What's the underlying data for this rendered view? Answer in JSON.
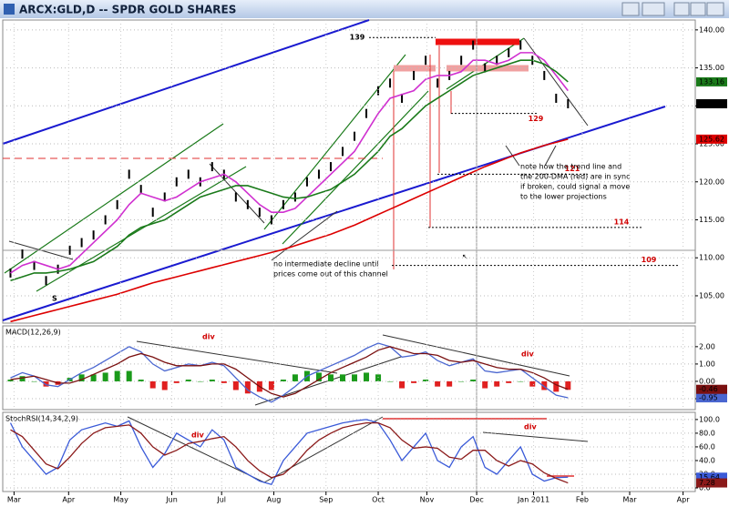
{
  "chart_data": [
    {
      "type": "price",
      "title": "ARCX:GLD,D -- SPDR GOLD SHARES",
      "xlim": [
        0,
        58
      ],
      "ylim": [
        101.4,
        141.3
      ],
      "grid": true,
      "yticks": [
        {
          "value": 105,
          "label": "105.00"
        },
        {
          "value": 110,
          "label": "110.00"
        },
        {
          "value": 115,
          "label": "115.00"
        },
        {
          "value": 120,
          "label": "120.00"
        },
        {
          "value": 125,
          "label": "125.00"
        },
        {
          "value": 130,
          "label": "130.00"
        },
        {
          "value": 135,
          "label": "135.00"
        },
        {
          "value": 140,
          "label": "140.00"
        }
      ],
      "x": [
        0.5,
        1.5,
        2.5,
        3.5,
        4.5,
        5.5,
        6.5,
        7.5,
        8.5,
        9.5,
        10.5,
        11.5,
        12.5,
        13.5,
        14.5,
        15.5,
        16.5,
        17.5,
        18.5,
        19.5,
        20.5,
        21.5,
        22.5,
        23.5,
        24.5,
        25.5,
        26.5,
        27.5,
        28.5,
        29.5,
        30.5,
        31.5,
        32.5,
        33.5,
        34.5,
        35.5,
        36.5,
        37.5,
        38.5,
        39.5,
        40.5,
        41.5,
        42.5,
        43.5,
        44.5,
        45.5,
        46.5,
        47.5
      ],
      "series": [
        {
          "style": "ticks",
          "color": "#000000",
          "badge": true,
          "values": [
            108,
            110.5,
            109,
            107,
            108.5,
            111,
            112,
            113,
            115,
            117,
            121,
            119,
            116,
            118,
            120,
            121,
            120,
            122,
            121,
            118,
            117,
            116,
            115,
            117,
            118,
            120,
            121,
            122,
            124,
            126,
            129,
            132,
            133,
            131,
            134,
            136,
            133,
            134,
            136,
            138,
            135,
            136,
            137,
            138,
            136,
            134,
            131,
            130.28
          ]
        },
        {
          "style": "line",
          "color": "#d030d0",
          "badge": false,
          "values": [
            108,
            109,
            109.5,
            109,
            108.5,
            109,
            110.5,
            112,
            113.5,
            115,
            117,
            118.5,
            118,
            117.5,
            118,
            119,
            120,
            120.5,
            121,
            120,
            118.5,
            117,
            116,
            116,
            116.5,
            118,
            119.5,
            121,
            122.5,
            124,
            126.5,
            129,
            131,
            131.5,
            132,
            133.5,
            134,
            134,
            134.5,
            136,
            136,
            135.5,
            136,
            137,
            137,
            136,
            134,
            132
          ]
        },
        {
          "style": "line",
          "color": "#1a7a1a",
          "badge": true,
          "values": [
            107,
            107.5,
            108,
            108,
            108.2,
            108.5,
            109,
            109.5,
            110.5,
            111.5,
            113,
            114,
            114.5,
            115,
            116,
            117,
            118,
            118.5,
            119,
            119.5,
            119.5,
            119,
            118.5,
            118,
            117.8,
            118,
            118.5,
            119,
            120,
            121,
            122.5,
            124,
            126,
            127,
            128.5,
            130,
            131,
            132,
            133,
            134,
            134.5,
            135,
            135.5,
            136,
            136,
            135.5,
            134.5,
            133.16
          ]
        },
        {
          "style": "line",
          "color": "#dd0000",
          "badge": true,
          "values": [
            101.6,
            102,
            102.4,
            102.8,
            103.2,
            103.6,
            104,
            104.4,
            104.8,
            105.2,
            105.7,
            106.2,
            106.7,
            107.1,
            107.5,
            107.9,
            108.3,
            108.7,
            109.1,
            109.5,
            109.9,
            110.3,
            110.7,
            111.1,
            111.6,
            112.1,
            112.6,
            113.1,
            113.7,
            114.3,
            115,
            115.7,
            116.4,
            117.1,
            117.8,
            118.5,
            119.2,
            119.9,
            120.6,
            121.3,
            122,
            122.6,
            123.2,
            123.8,
            124.3,
            124.8,
            125.2,
            125.62
          ]
        }
      ],
      "projections": [
        139,
        129,
        121,
        114,
        109
      ],
      "annotations": [
        [
          "S"
        ],
        [
          "note how the trend line and",
          "the 200-DMA (red) are in sync",
          "if broken, could signal a move",
          "to the lower projections"
        ],
        [
          "no intermediate decline until",
          "prices come out of this channel"
        ]
      ]
    },
    {
      "type": "macd",
      "title": "MACD(12,26,9)",
      "xlim": [
        0,
        58
      ],
      "ylim": [
        -1.63,
        3.2
      ],
      "grid": true,
      "yticks": [
        {
          "value": -1,
          "label": "-1.00"
        },
        {
          "value": 0,
          "label": "0.00"
        },
        {
          "value": 1,
          "label": "1.00"
        },
        {
          "value": 2,
          "label": "2.00"
        }
      ],
      "x": [
        0.5,
        1.5,
        2.5,
        3.5,
        4.5,
        5.5,
        6.5,
        7.5,
        8.5,
        9.5,
        10.5,
        11.5,
        12.5,
        13.5,
        14.5,
        15.5,
        16.5,
        17.5,
        18.5,
        19.5,
        20.5,
        21.5,
        22.5,
        23.5,
        24.5,
        25.5,
        26.5,
        27.5,
        28.5,
        29.5,
        30.5,
        31.5,
        32.5,
        33.5,
        34.5,
        35.5,
        36.5,
        37.5,
        38.5,
        39.5,
        40.5,
        41.5,
        42.5,
        43.5,
        44.5,
        45.5,
        46.5,
        47.5
      ],
      "series": [
        {
          "style": "histogram",
          "color": "#1a9a1a",
          "down_color": "#e02020",
          "badge": true,
          "values": [
            0.1,
            0.3,
            0,
            -0.3,
            -0.2,
            0.2,
            0.4,
            0.4,
            0.5,
            0.6,
            0.6,
            0.1,
            -0.4,
            -0.5,
            -0.1,
            0.1,
            0,
            0.1,
            -0.1,
            -0.5,
            -0.7,
            -0.6,
            -0.5,
            0.1,
            0.4,
            0.6,
            0.5,
            0.4,
            0.4,
            0.4,
            0.5,
            0.4,
            0,
            -0.4,
            -0.1,
            0.1,
            -0.3,
            -0.3,
            0,
            0.1,
            -0.4,
            -0.3,
            -0.1,
            0,
            -0.3,
            -0.5,
            -0.6,
            -0.49
          ]
        },
        {
          "style": "line",
          "color": "#4a66d0",
          "badge": true,
          "values": [
            0.2,
            0.5,
            0.3,
            -0.2,
            -0.3,
            0.1,
            0.5,
            0.8,
            1.2,
            1.6,
            2.0,
            1.7,
            1.0,
            0.6,
            0.8,
            1.0,
            0.9,
            1.1,
            0.9,
            0.2,
            -0.5,
            -0.9,
            -1.2,
            -0.8,
            -0.3,
            0.3,
            0.6,
            0.9,
            1.2,
            1.5,
            1.9,
            2.2,
            2.0,
            1.4,
            1.5,
            1.7,
            1.2,
            0.9,
            1.1,
            1.3,
            0.6,
            0.5,
            0.6,
            0.7,
            0.2,
            -0.3,
            -0.8,
            -0.95
          ]
        },
        {
          "style": "line",
          "color": "#7a1010",
          "badge": true,
          "values": [
            0.1,
            0.2,
            0.3,
            0.1,
            -0.1,
            -0.1,
            0.1,
            0.4,
            0.7,
            1.0,
            1.4,
            1.6,
            1.4,
            1.1,
            0.9,
            0.9,
            0.9,
            1.0,
            1.0,
            0.7,
            0.2,
            -0.3,
            -0.7,
            -0.9,
            -0.7,
            -0.3,
            0.1,
            0.5,
            0.8,
            1.1,
            1.4,
            1.8,
            2.0,
            1.8,
            1.6,
            1.6,
            1.5,
            1.2,
            1.1,
            1.2,
            1.0,
            0.8,
            0.7,
            0.7,
            0.5,
            0.2,
            -0.2,
            -0.46
          ]
        }
      ],
      "annotations": [
        [
          "div"
        ],
        [
          "div"
        ]
      ]
    },
    {
      "type": "line",
      "title": "StochRSI(14,34,2,9)",
      "xlim": [
        0,
        58
      ],
      "ylim": [
        -5.3,
        110.5
      ],
      "grid": true,
      "yticks": [
        {
          "value": 0,
          "label": "0.0"
        },
        {
          "value": 20,
          "label": "20.0"
        },
        {
          "value": 40,
          "label": "40.0"
        },
        {
          "value": 60,
          "label": "60.0"
        },
        {
          "value": 80,
          "label": "80.0"
        },
        {
          "value": 100,
          "label": "100.0"
        }
      ],
      "xticks": [
        {
          "value": 0.8,
          "label": "Mar"
        },
        {
          "value": 5.4,
          "label": "Apr"
        },
        {
          "value": 9.8,
          "label": "May"
        },
        {
          "value": 14.1,
          "label": "Jun"
        },
        {
          "value": 18.3,
          "label": "Jul"
        },
        {
          "value": 22.7,
          "label": "Aug"
        },
        {
          "value": 27.1,
          "label": "Sep"
        },
        {
          "value": 31.5,
          "label": "Oct"
        },
        {
          "value": 35.6,
          "label": "Nov"
        },
        {
          "value": 39.8,
          "label": "Dec"
        },
        {
          "value": 44.6,
          "label": "Jan 2011"
        },
        {
          "value": 48.7,
          "label": "Feb"
        },
        {
          "value": 52.7,
          "label": "Mar"
        },
        {
          "value": 57.2,
          "label": "Apr"
        }
      ],
      "x": [
        0.5,
        1.5,
        2.5,
        3.5,
        4.5,
        5.5,
        6.5,
        7.5,
        8.5,
        9.5,
        10.5,
        11.5,
        12.5,
        13.5,
        14.5,
        15.5,
        16.5,
        17.5,
        18.5,
        19.5,
        20.5,
        21.5,
        22.5,
        23.5,
        24.5,
        25.5,
        26.5,
        27.5,
        28.5,
        29.5,
        30.5,
        31.5,
        32.5,
        33.5,
        34.5,
        35.5,
        36.5,
        37.5,
        38.5,
        39.5,
        40.5,
        41.5,
        42.5,
        43.5,
        44.5,
        45.5,
        46.5,
        47.5
      ],
      "series": [
        {
          "style": "line",
          "color": "#3a5ad8",
          "badge": true,
          "values": [
            95,
            60,
            40,
            20,
            30,
            70,
            85,
            90,
            95,
            90,
            98,
            60,
            30,
            50,
            80,
            70,
            60,
            85,
            70,
            30,
            20,
            10,
            5,
            40,
            60,
            80,
            85,
            90,
            95,
            98,
            100,
            95,
            70,
            40,
            60,
            80,
            40,
            30,
            60,
            75,
            30,
            20,
            40,
            60,
            20,
            10,
            15,
            15.64
          ]
        },
        {
          "style": "line",
          "color": "#8b1a1a",
          "badge": true,
          "values": [
            85,
            75,
            55,
            35,
            28,
            45,
            65,
            80,
            88,
            90,
            92,
            80,
            60,
            48,
            55,
            65,
            68,
            72,
            75,
            60,
            40,
            25,
            15,
            20,
            35,
            55,
            70,
            80,
            88,
            92,
            95,
            95,
            88,
            70,
            58,
            60,
            58,
            45,
            42,
            55,
            55,
            40,
            32,
            40,
            35,
            22,
            14,
            7.28
          ]
        }
      ],
      "annotations": [
        [
          "div"
        ],
        [
          "div"
        ]
      ]
    }
  ]
}
